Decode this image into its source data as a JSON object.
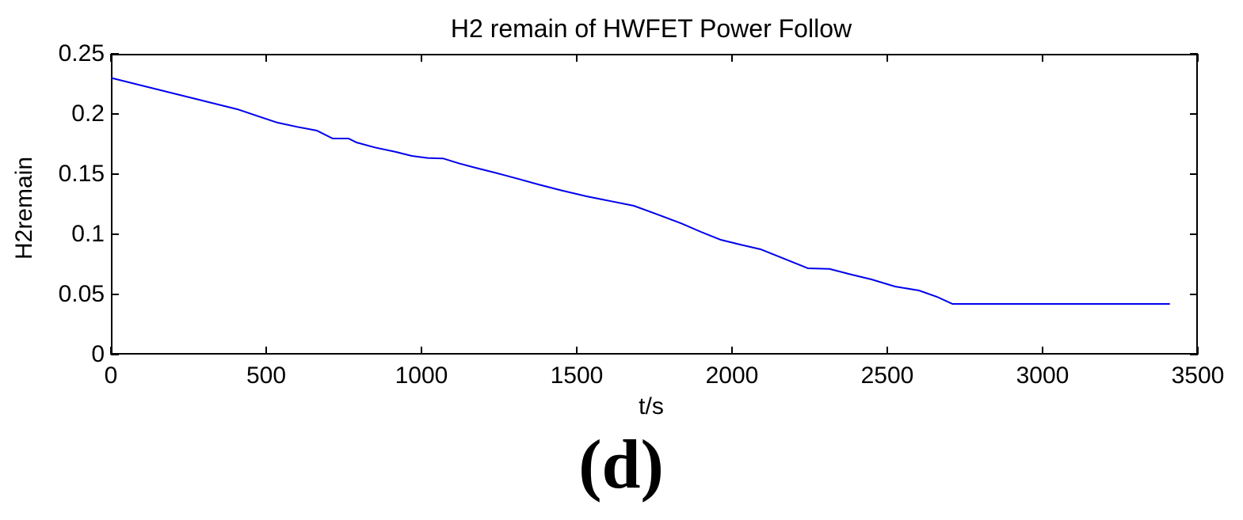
{
  "figure": {
    "title": "H2 remain of HWFET Power Follow",
    "xlabel": "t/s",
    "ylabel": "H2remain",
    "caption": "(d)"
  },
  "chart_data": {
    "type": "line",
    "title": "H2 remain of HWFET Power Follow",
    "xlabel": "t/s",
    "ylabel": "H2remain",
    "caption": "(d)",
    "xlim": [
      0,
      3500
    ],
    "ylim": [
      0,
      0.25
    ],
    "x_ticks": [
      0,
      500,
      1000,
      1500,
      2000,
      2500,
      3000,
      3500
    ],
    "x_tick_labels": [
      "0",
      "500",
      "1000",
      "1500",
      "2000",
      "2500",
      "3000",
      "3500"
    ],
    "y_ticks": [
      0,
      0.05,
      0.1,
      0.15,
      0.2,
      0.25
    ],
    "y_tick_labels": [
      "0",
      "0.05",
      "0.1",
      "0.15",
      "0.2",
      "0.25"
    ],
    "grid": false,
    "legend": "none",
    "line_color": "#0000EE",
    "axis_color": "#000000",
    "background_color": "#FFFFFF",
    "series": [
      {
        "name": "H2 remain",
        "points": [
          [
            0,
            0.23
          ],
          [
            100,
            0.2236
          ],
          [
            200,
            0.2172
          ],
          [
            300,
            0.2108
          ],
          [
            408,
            0.2039
          ],
          [
            470,
            0.1985
          ],
          [
            536,
            0.1928
          ],
          [
            600,
            0.1893
          ],
          [
            663,
            0.1862
          ],
          [
            714,
            0.1796
          ],
          [
            765,
            0.1796
          ],
          [
            791,
            0.1763
          ],
          [
            850,
            0.1722
          ],
          [
            918,
            0.1684
          ],
          [
            969,
            0.1651
          ],
          [
            1020,
            0.1634
          ],
          [
            1070,
            0.163
          ],
          [
            1120,
            0.159
          ],
          [
            1173,
            0.1553
          ],
          [
            1240,
            0.151
          ],
          [
            1310,
            0.1462
          ],
          [
            1377,
            0.1414
          ],
          [
            1450,
            0.1365
          ],
          [
            1531,
            0.1316
          ],
          [
            1610,
            0.1275
          ],
          [
            1684,
            0.1237
          ],
          [
            1760,
            0.1165
          ],
          [
            1837,
            0.109
          ],
          [
            1900,
            0.102
          ],
          [
            1964,
            0.0954
          ],
          [
            2030,
            0.0912
          ],
          [
            2092,
            0.0875
          ],
          [
            2170,
            0.0795
          ],
          [
            2245,
            0.0717
          ],
          [
            2314,
            0.0712
          ],
          [
            2380,
            0.0668
          ],
          [
            2449,
            0.0625
          ],
          [
            2525,
            0.0566
          ],
          [
            2602,
            0.0533
          ],
          [
            2660,
            0.048
          ],
          [
            2710,
            0.0421
          ],
          [
            3410,
            0.0421
          ]
        ]
      }
    ]
  }
}
